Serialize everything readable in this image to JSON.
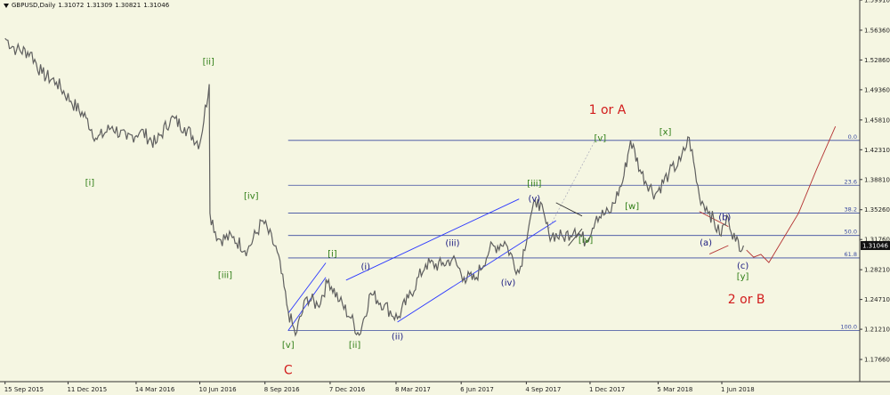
{
  "header": {
    "symbol": "GBPUSD,Daily",
    "open": "1.31072",
    "high": "1.31309",
    "low": "1.30821",
    "close": "1.31046"
  },
  "colors": {
    "background": "#f5f6e2",
    "price": "#5f5f5f",
    "fib": "#3a4aa0",
    "fib_text": "#3a4aa0",
    "channel": "#2b38ff",
    "green_label": "#2e7d15",
    "blue_label": "#1a1a80",
    "red_label": "#d21c1c",
    "projection": "#b43232",
    "last_price_box": "#111111"
  },
  "chart_data": {
    "type": "line",
    "title": "GBPUSD,Daily",
    "series_label": "GBPUSD,Daily",
    "ylim": [
      1.1505,
      1.5991
    ],
    "y_ticks": [
      "1.59910",
      "1.56360",
      "1.52860",
      "1.49360",
      "1.45810",
      "1.42310",
      "1.38810",
      "1.35260",
      "1.31760",
      "1.28210",
      "1.24710",
      "1.21210",
      "1.17660"
    ],
    "x_ticks": [
      "15 Sep 2015",
      "11 Dec 2015",
      "14 Mar 2016",
      "10 Jun 2016",
      "8 Sep 2016",
      "7 Dec 2016",
      "8 Mar 2017",
      "6 Jun 2017",
      "4 Sep 2017",
      "1 Dec 2017",
      "5 Mar 2018",
      "1 Jun 2018"
    ],
    "last_price": "1.31046",
    "series": [
      {
        "x": [
          "2015-09-15",
          "2015-10-01",
          "2015-10-20",
          "2015-11-05",
          "2015-11-25",
          "2015-12-15",
          "2016-01-05",
          "2016-01-20",
          "2016-02-10",
          "2016-03-01",
          "2016-03-20",
          "2016-04-10",
          "2016-05-01",
          "2016-05-20",
          "2016-06-10",
          "2016-06-23",
          "2016-06-24",
          "2016-07-05",
          "2016-07-25",
          "2016-08-15",
          "2016-09-05",
          "2016-09-25",
          "2016-10-10",
          "2016-10-20",
          "2016-11-05",
          "2016-11-20",
          "2016-12-05",
          "2016-12-20",
          "2017-01-05",
          "2017-01-16",
          "2017-02-01",
          "2017-02-20",
          "2017-03-10",
          "2017-03-25",
          "2017-04-18",
          "2017-05-10",
          "2017-05-25",
          "2017-06-10",
          "2017-06-25",
          "2017-07-15",
          "2017-08-05",
          "2017-08-25",
          "2017-09-10",
          "2017-09-20",
          "2017-10-05",
          "2017-10-25",
          "2017-11-10",
          "2017-11-25",
          "2017-12-10",
          "2017-12-28",
          "2018-01-15",
          "2018-01-26",
          "2018-02-10",
          "2018-03-01",
          "2018-03-20",
          "2018-04-05",
          "2018-04-17",
          "2018-05-01",
          "2018-05-15",
          "2018-05-29",
          "2018-06-10",
          "2018-06-20",
          "2018-07-01"
        ],
        "values": [
          1.554,
          1.5405,
          1.5375,
          1.5125,
          1.5025,
          1.4802,
          1.4602,
          1.4352,
          1.4505,
          1.4352,
          1.4452,
          1.4302,
          1.4602,
          1.4495,
          1.4299,
          1.5002,
          1.3485,
          1.3184,
          1.3198,
          1.3052,
          1.3398,
          1.3028,
          1.2335,
          1.2051,
          1.2501,
          1.2401,
          1.2701,
          1.2451,
          1.2252,
          1.2052,
          1.2545,
          1.2405,
          1.2245,
          1.2485,
          1.2885,
          1.2875,
          1.2951,
          1.2732,
          1.2705,
          1.3052,
          1.3152,
          1.2785,
          1.3452,
          1.3652,
          1.3251,
          1.3201,
          1.3302,
          1.3152,
          1.3452,
          1.3485,
          1.3855,
          1.4341,
          1.3952,
          1.3708,
          1.3952,
          1.4102,
          1.4375,
          1.3685,
          1.3502,
          1.3232,
          1.3432,
          1.3152,
          1.3105
        ]
      }
    ],
    "fibonacci": [
      {
        "label": "0.0",
        "value": 1.4341
      },
      {
        "label": "23.6",
        "value": 1.3813
      },
      {
        "label": "38.2",
        "value": 1.3486
      },
      {
        "label": "50.0",
        "value": 1.3223
      },
      {
        "label": "61.8",
        "value": 1.2959
      },
      {
        "label": "100.0",
        "value": 1.2105
      }
    ],
    "channel_lines": [
      {
        "from": [
          "2017-03-10",
          1.2205
        ],
        "to": [
          "2017-10-15",
          1.3398
        ]
      },
      {
        "from": [
          "2016-12-29",
          1.2698
        ],
        "to": [
          "2017-08-25",
          1.3652
        ]
      },
      {
        "from": [
          "2016-10-10",
          1.2308
        ],
        "to": [
          "2016-12-01",
          1.2901
        ]
      },
      {
        "from": [
          "2016-10-10",
          1.2105
        ],
        "to": [
          "2016-12-01",
          1.2731
        ]
      },
      {
        "from": [
          "2017-10-05",
          1.3305
        ],
        "to": [
          "2017-12-08",
          1.4341
        ],
        "dotted": true
      },
      {
        "from": [
          "2017-10-15",
          1.3608
        ],
        "to": [
          "2017-11-20",
          1.3452
        ],
        "dark": true
      },
      {
        "from": [
          "2017-11-01",
          1.3102
        ],
        "to": [
          "2017-11-20",
          1.3302
        ],
        "dark": true
      },
      {
        "from": [
          "2018-05-01",
          1.3505
        ],
        "to": [
          "2018-06-10",
          1.3328
        ],
        "red": true
      },
      {
        "from": [
          "2018-05-15",
          1.3005
        ],
        "to": [
          "2018-06-10",
          1.3105
        ],
        "red": true
      }
    ],
    "projection": [
      [
        "2018-07-05",
        1.3052
      ],
      [
        "2018-07-15",
        1.2968
      ],
      [
        "2018-07-25",
        1.3001
      ],
      [
        "2018-08-05",
        1.2905
      ],
      [
        "2018-09-15",
        1.3485
      ],
      [
        "2018-10-10",
        1.4002
      ],
      [
        "2018-11-05",
        1.4505
      ]
    ],
    "wave_labels": [
      {
        "text": "[ii]",
        "x": "2016-06-22",
        "y": 1.5235,
        "color": "green"
      },
      {
        "text": "[i]",
        "x": "2016-01-10",
        "y": 1.3812,
        "color": "green"
      },
      {
        "text": "[iii]",
        "x": "2016-07-15",
        "y": 1.2725,
        "color": "green"
      },
      {
        "text": "[iv]",
        "x": "2016-08-20",
        "y": 1.3652,
        "color": "green"
      },
      {
        "text": "[v]",
        "x": "2016-10-10",
        "y": 1.1902,
        "color": "green"
      },
      {
        "text": "C",
        "x": "2016-10-10",
        "y": 1.1592,
        "color": "red"
      },
      {
        "text": "[i]",
        "x": "2016-12-10",
        "y": 1.2972,
        "color": "green"
      },
      {
        "text": "[ii]",
        "x": "2017-01-10",
        "y": 1.1902,
        "color": "green"
      },
      {
        "text": "(i)",
        "x": "2017-01-25",
        "y": 1.2825,
        "color": "blue"
      },
      {
        "text": "(ii)",
        "x": "2017-03-10",
        "y": 1.2002,
        "color": "blue"
      },
      {
        "text": "(iii)",
        "x": "2017-05-25",
        "y": 1.3102,
        "color": "blue"
      },
      {
        "text": "(iv)",
        "x": "2017-08-10",
        "y": 1.2635,
        "color": "blue"
      },
      {
        "text": "[iii]",
        "x": "2017-09-15",
        "y": 1.3802,
        "color": "green"
      },
      {
        "text": "(v)",
        "x": "2017-09-15",
        "y": 1.3625,
        "color": "blue"
      },
      {
        "text": "[iv]",
        "x": "2017-11-25",
        "y": 1.3135,
        "color": "green"
      },
      {
        "text": "[v]",
        "x": "2017-12-15",
        "y": 1.4335,
        "color": "green"
      },
      {
        "text": "1 or A",
        "x": "2017-12-25",
        "y": 1.4652,
        "color": "red"
      },
      {
        "text": "[w]",
        "x": "2018-01-28",
        "y": 1.3535,
        "color": "green"
      },
      {
        "text": "[x]",
        "x": "2018-03-15",
        "y": 1.4405,
        "color": "green"
      },
      {
        "text": "(a)",
        "x": "2018-05-10",
        "y": 1.3105,
        "color": "blue"
      },
      {
        "text": "(b)",
        "x": "2018-06-05",
        "y": 1.3402,
        "color": "blue"
      },
      {
        "text": "(c)",
        "x": "2018-06-30",
        "y": 1.2835,
        "color": "blue"
      },
      {
        "text": "[y]",
        "x": "2018-06-30",
        "y": 1.2705,
        "color": "green"
      },
      {
        "text": "2 or B",
        "x": "2018-07-05",
        "y": 1.2425,
        "color": "red"
      }
    ]
  }
}
